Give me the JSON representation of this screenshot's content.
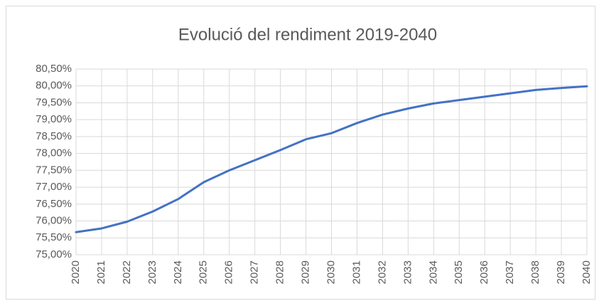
{
  "chart_data": {
    "type": "line",
    "title": "Evolució del rendiment 2019-2040",
    "categories": [
      "2020",
      "2021",
      "2022",
      "2023",
      "2024",
      "2025",
      "2026",
      "2027",
      "2028",
      "2029",
      "2030",
      "2031",
      "2032",
      "2033",
      "2034",
      "2035",
      "2036",
      "2037",
      "2038",
      "2039",
      "2040"
    ],
    "series": [
      {
        "name": "Rendiment",
        "color": "#4472c4",
        "values": [
          75.67,
          75.78,
          75.98,
          76.28,
          76.65,
          77.15,
          77.5,
          77.8,
          78.1,
          78.42,
          78.6,
          78.9,
          79.15,
          79.33,
          79.48,
          79.58,
          79.68,
          79.78,
          79.88,
          79.94,
          79.99
        ]
      }
    ],
    "ylim": [
      75,
      80.5
    ],
    "yticks": [
      {
        "value": 75,
        "label": "75,00%"
      },
      {
        "value": 75.5,
        "label": "75,50%"
      },
      {
        "value": 76,
        "label": "76,00%"
      },
      {
        "value": 76.5,
        "label": "76,50%"
      },
      {
        "value": 77,
        "label": "77,00%"
      },
      {
        "value": 77.5,
        "label": "77,50%"
      },
      {
        "value": 78,
        "label": "78,00%"
      },
      {
        "value": 78.5,
        "label": "78,50%"
      },
      {
        "value": 79,
        "label": "79,00%"
      },
      {
        "value": 79.5,
        "label": "79,50%"
      },
      {
        "value": 80,
        "label": "80,00%"
      },
      {
        "value": 80.5,
        "label": "80,50%"
      }
    ],
    "grid": true
  }
}
